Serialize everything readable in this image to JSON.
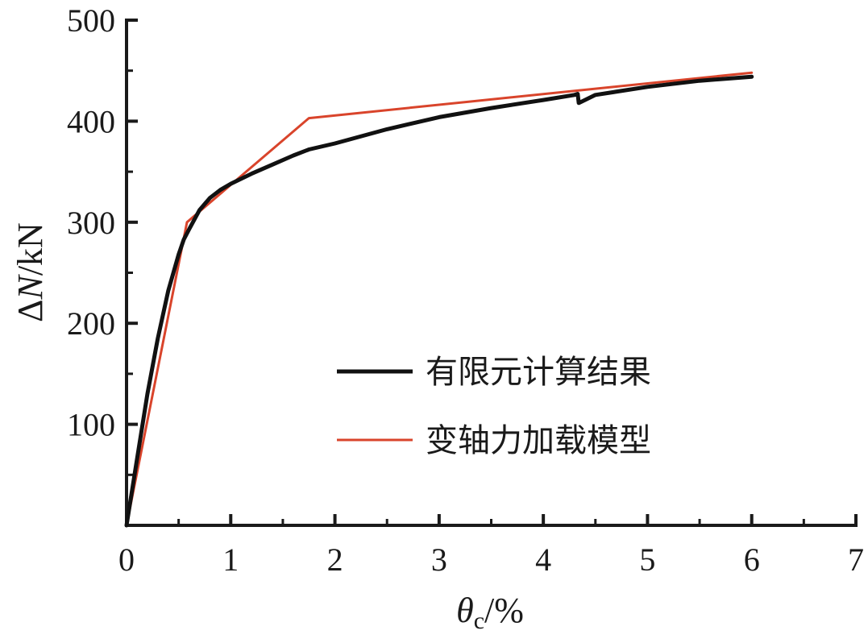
{
  "chart_data": {
    "type": "line",
    "xlabel": {
      "main": "θ",
      "sub": "c",
      "rest": "/%"
    },
    "ylabel": {
      "delta": "Δ",
      "var": "N",
      "rest": "/kN"
    },
    "xlim": [
      0,
      7
    ],
    "ylim": [
      0,
      500
    ],
    "x_ticks": [
      "0",
      "1",
      "2",
      "3",
      "4",
      "5",
      "6",
      "7"
    ],
    "y_ticks": [
      "100",
      "200",
      "300",
      "400",
      "500"
    ],
    "grid": false,
    "legend_position": "center-right",
    "series": [
      {
        "name": "有限元计算结果",
        "color": "#111111",
        "points": [
          [
            0,
            0
          ],
          [
            0.1,
            65
          ],
          [
            0.2,
            130
          ],
          [
            0.3,
            185
          ],
          [
            0.4,
            232
          ],
          [
            0.5,
            268
          ],
          [
            0.55,
            283
          ],
          [
            0.6,
            293
          ],
          [
            0.7,
            312
          ],
          [
            0.8,
            324
          ],
          [
            0.9,
            332
          ],
          [
            1.0,
            338
          ],
          [
            1.2,
            348
          ],
          [
            1.4,
            357
          ],
          [
            1.6,
            366
          ],
          [
            1.75,
            372
          ],
          [
            2.0,
            378
          ],
          [
            2.5,
            392
          ],
          [
            3.0,
            404
          ],
          [
            3.5,
            413
          ],
          [
            4.0,
            421
          ],
          [
            4.3,
            426
          ],
          [
            4.33,
            427
          ],
          [
            4.34,
            418
          ],
          [
            4.36,
            419
          ],
          [
            4.5,
            426
          ],
          [
            5.0,
            434
          ],
          [
            5.5,
            440
          ],
          [
            6.0,
            444
          ]
        ]
      },
      {
        "name": "变轴力加载模型",
        "color": "#d9442b",
        "points": [
          [
            0,
            0
          ],
          [
            0.58,
            300
          ],
          [
            1.75,
            403
          ],
          [
            6.0,
            448
          ]
        ]
      }
    ]
  }
}
